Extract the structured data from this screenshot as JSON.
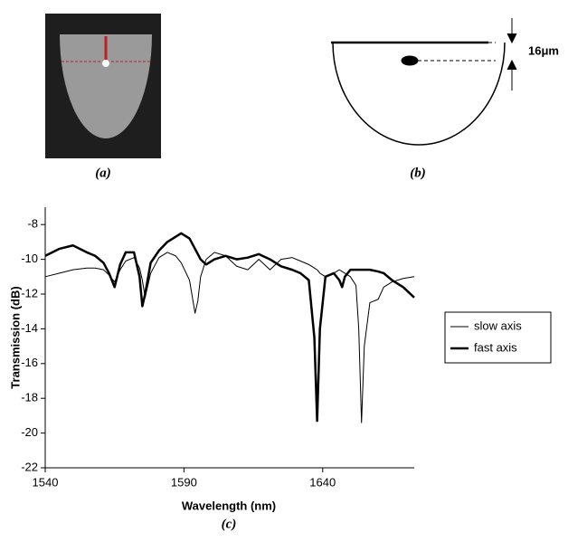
{
  "captions": [
    "(a)",
    "(b)",
    "(c)"
  ],
  "diagram": {
    "dimension_label": "16μm"
  },
  "chart_data": {
    "type": "line",
    "x_label": "Wavelength (nm)",
    "y_label": "Transmission (dB)",
    "x": [
      1540,
      1545,
      1550,
      1555,
      1558,
      1561,
      1563,
      1565,
      1567,
      1569,
      1572,
      1574,
      1575,
      1576,
      1578,
      1581,
      1584,
      1587,
      1589,
      1592,
      1594,
      1595,
      1596,
      1598,
      1601,
      1605,
      1609,
      1613,
      1617,
      1621,
      1625,
      1629,
      1632,
      1635,
      1637,
      1638,
      1639,
      1641,
      1644,
      1646,
      1647,
      1648,
      1650,
      1652,
      1653,
      1654,
      1655,
      1657,
      1660,
      1662,
      1665,
      1669,
      1673
    ],
    "series": [
      {
        "name": "slow axis",
        "color": "#000000",
        "line_width": 1,
        "values": [
          -11.0,
          -10.8,
          -10.6,
          -10.5,
          -10.5,
          -10.6,
          -10.9,
          -11.3,
          -10.6,
          -10.1,
          -9.9,
          -10.5,
          -11.2,
          -12.2,
          -10.8,
          -9.9,
          -9.6,
          -9.8,
          -10.2,
          -11.2,
          -13.1,
          -12.4,
          -11.0,
          -10.0,
          -9.6,
          -9.8,
          -10.4,
          -10.6,
          -10.0,
          -10.6,
          -10.0,
          -9.9,
          -10.1,
          -10.3,
          -10.5,
          -10.6,
          -10.8,
          -11.0,
          -10.8,
          -10.6,
          -10.7,
          -10.8,
          -11.0,
          -11.5,
          -14.0,
          -19.4,
          -15.0,
          -12.5,
          -12.3,
          -11.6,
          -11.3,
          -11.1,
          -11.0
        ]
      },
      {
        "name": "fast axis",
        "color": "#000000",
        "line_width": 2.5,
        "values": [
          -9.8,
          -9.4,
          -9.2,
          -9.6,
          -9.8,
          -10.2,
          -10.8,
          -11.6,
          -10.3,
          -9.6,
          -9.6,
          -11.0,
          -12.7,
          -12.0,
          -10.2,
          -9.5,
          -9.0,
          -8.7,
          -8.5,
          -8.8,
          -9.4,
          -9.7,
          -10.0,
          -10.3,
          -10.0,
          -9.8,
          -10.0,
          -9.9,
          -9.7,
          -10.0,
          -10.4,
          -10.6,
          -10.8,
          -11.2,
          -14.5,
          -19.3,
          -14.0,
          -11.0,
          -10.8,
          -11.2,
          -11.6,
          -11.0,
          -10.6,
          -10.6,
          -10.6,
          -10.6,
          -10.6,
          -10.6,
          -10.7,
          -10.8,
          -11.2,
          -11.6,
          -12.2
        ]
      }
    ],
    "xlim": [
      1540,
      1673
    ],
    "xticks": [
      1540,
      1590,
      1640
    ],
    "ylim": [
      -22,
      -7
    ],
    "yticks": [
      -8,
      -10,
      -12,
      -14,
      -16,
      -18,
      -20,
      -22
    ],
    "legend": "right"
  }
}
